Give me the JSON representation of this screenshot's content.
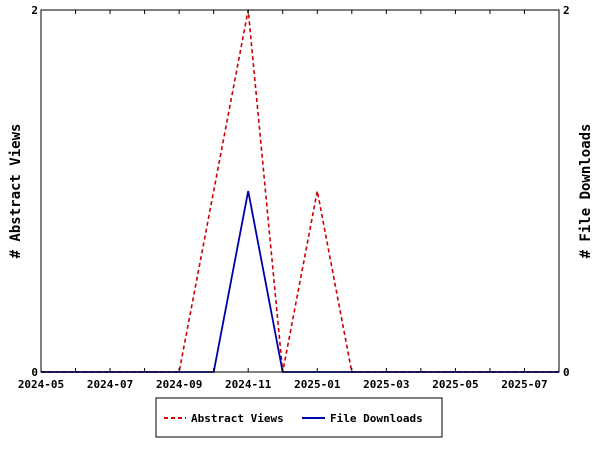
{
  "chart_data": {
    "type": "line",
    "title": "",
    "xlabel": "",
    "x": [
      "2024-05",
      "2024-06",
      "2024-07",
      "2024-08",
      "2024-09",
      "2024-10",
      "2024-11",
      "2024-12",
      "2025-01",
      "2025-02",
      "2025-03",
      "2025-04",
      "2025-05",
      "2025-06",
      "2025-07",
      "2025-08"
    ],
    "x_tick_labels": [
      "2024-05",
      "2024-07",
      "2024-09",
      "2024-11",
      "2025-01",
      "2025-03",
      "2025-05",
      "2025-07"
    ],
    "xlim": [
      "2024-05",
      "2025-08"
    ],
    "ylabel_left": "# Abstract Views",
    "ylabel_right": "# File Downloads",
    "ylim_left": [
      0,
      2
    ],
    "ylim_right": [
      0,
      2
    ],
    "y_tick_labels_left": [
      "0",
      "2"
    ],
    "y_tick_labels_right": [
      "0",
      "2"
    ],
    "grid": false,
    "legend_position": "bottom-center",
    "series": [
      {
        "name": "Abstract Views",
        "axis": "left",
        "color": "#cc0000",
        "style": "dashed",
        "values": [
          0,
          0,
          0,
          0,
          0,
          1,
          2,
          0,
          1,
          0,
          0,
          0,
          0,
          0,
          0,
          0
        ]
      },
      {
        "name": "File Downloads",
        "axis": "right",
        "color": "#0000aa",
        "style": "solid",
        "values": [
          0,
          0,
          0,
          0,
          0,
          0,
          1,
          0,
          0,
          0,
          0,
          0,
          0,
          0,
          0,
          0
        ]
      }
    ]
  }
}
